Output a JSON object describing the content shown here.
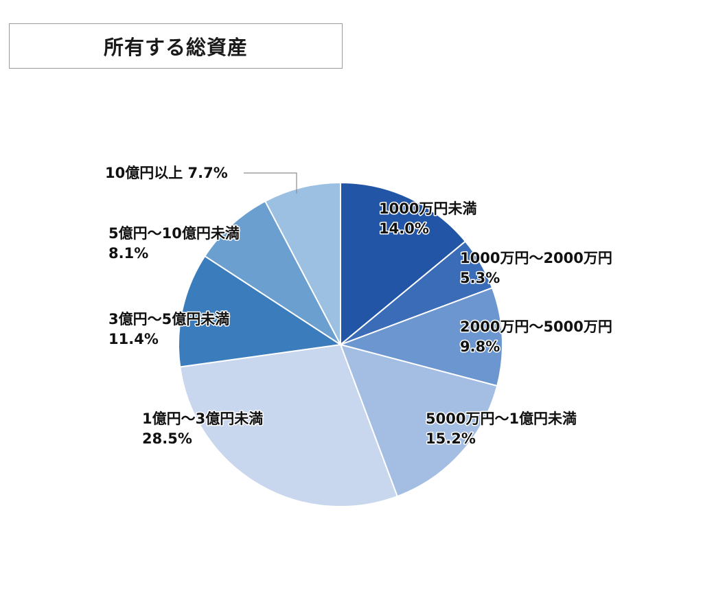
{
  "chart_data": {
    "type": "pie",
    "title": "所有する総資産",
    "unit": "%",
    "slices": [
      {
        "label": "1000万円未満",
        "value": 14.0,
        "value_text": "14.0%",
        "color": "#2255a6"
      },
      {
        "label": "1000万円～2000万円",
        "value": 5.3,
        "value_text": "5.3%",
        "color": "#3a6cb8"
      },
      {
        "label": "2000万円～5000万円",
        "value": 9.8,
        "value_text": "9.8%",
        "color": "#6c96cf"
      },
      {
        "label": "5000万円～1億円未満",
        "value": 15.2,
        "value_text": "15.2%",
        "color": "#a4bde3"
      },
      {
        "label": "1億円～3億円未満",
        "value": 28.5,
        "value_text": "28.5%",
        "color": "#c8d7ee"
      },
      {
        "label": "3億円～5億円未満",
        "value": 11.4,
        "value_text": "11.4%",
        "color": "#3b7cbc"
      },
      {
        "label": "5億円～10億円未満",
        "value": 8.1,
        "value_text": "8.1%",
        "color": "#6a9fcf"
      },
      {
        "label": "10億円以上",
        "value": 7.7,
        "value_text": "7.7%",
        "color": "#9cc0e1"
      }
    ],
    "legend": "none",
    "start_angle": "12 o'clock, clockwise"
  }
}
